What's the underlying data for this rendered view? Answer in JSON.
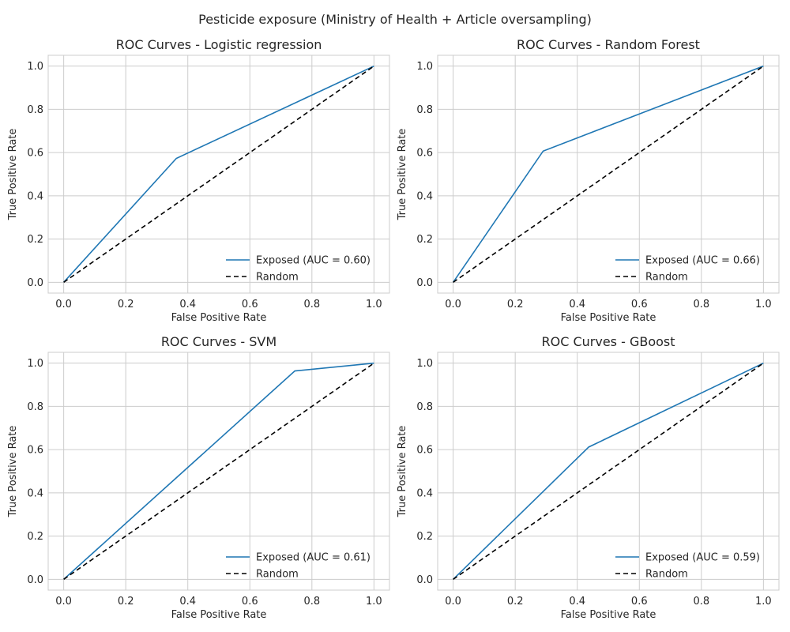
{
  "figure": {
    "title": "Pesticide exposure (Ministry of Health + Article oversampling)"
  },
  "colors": {
    "model_curve": "#1f77b4",
    "random_line": "#000000",
    "grid": "#cccccc"
  },
  "chart_data": [
    {
      "type": "line",
      "title": "ROC Curves - Logistic regression",
      "xlabel": "False Positive Rate",
      "ylabel": "True Positive Rate",
      "xlim": [
        -0.05,
        1.05
      ],
      "ylim": [
        -0.05,
        1.05
      ],
      "xticks": [
        "0.0",
        "0.2",
        "0.4",
        "0.6",
        "0.8",
        "1.0"
      ],
      "yticks": [
        "0.0",
        "0.2",
        "0.4",
        "0.6",
        "0.8",
        "1.0"
      ],
      "grid": true,
      "legend_position": "lower-right",
      "series": [
        {
          "name": "Exposed (AUC = 0.60)",
          "style": "solid",
          "x": [
            0.0,
            0.363,
            1.0
          ],
          "y": [
            0.0,
            0.573,
            1.0
          ]
        },
        {
          "name": "Random",
          "style": "dashed",
          "x": [
            0.0,
            1.0
          ],
          "y": [
            0.0,
            1.0
          ]
        }
      ]
    },
    {
      "type": "line",
      "title": "ROC Curves - Random Forest",
      "xlabel": "False Positive Rate",
      "ylabel": "True Positive Rate",
      "xlim": [
        -0.05,
        1.05
      ],
      "ylim": [
        -0.05,
        1.05
      ],
      "xticks": [
        "0.0",
        "0.2",
        "0.4",
        "0.6",
        "0.8",
        "1.0"
      ],
      "yticks": [
        "0.0",
        "0.2",
        "0.4",
        "0.6",
        "0.8",
        "1.0"
      ],
      "grid": true,
      "legend_position": "lower-right",
      "series": [
        {
          "name": "Exposed (AUC = 0.66)",
          "style": "solid",
          "x": [
            0.0,
            0.29,
            1.0
          ],
          "y": [
            0.0,
            0.607,
            1.0
          ]
        },
        {
          "name": "Random",
          "style": "dashed",
          "x": [
            0.0,
            1.0
          ],
          "y": [
            0.0,
            1.0
          ]
        }
      ]
    },
    {
      "type": "line",
      "title": "ROC Curves - SVM",
      "xlabel": "False Positive Rate",
      "ylabel": "True Positive Rate",
      "xlim": [
        -0.05,
        1.05
      ],
      "ylim": [
        -0.05,
        1.05
      ],
      "xticks": [
        "0.0",
        "0.2",
        "0.4",
        "0.6",
        "0.8",
        "1.0"
      ],
      "yticks": [
        "0.0",
        "0.2",
        "0.4",
        "0.6",
        "0.8",
        "1.0"
      ],
      "grid": true,
      "legend_position": "lower-right",
      "series": [
        {
          "name": "Exposed (AUC = 0.61)",
          "style": "solid",
          "x": [
            0.0,
            0.745,
            1.0
          ],
          "y": [
            0.0,
            0.964,
            1.0
          ]
        },
        {
          "name": "Random",
          "style": "dashed",
          "x": [
            0.0,
            1.0
          ],
          "y": [
            0.0,
            1.0
          ]
        }
      ]
    },
    {
      "type": "line",
      "title": "ROC Curves - GBoost",
      "xlabel": "False Positive Rate",
      "ylabel": "True Positive Rate",
      "xlim": [
        -0.05,
        1.05
      ],
      "ylim": [
        -0.05,
        1.05
      ],
      "xticks": [
        "0.0",
        "0.2",
        "0.4",
        "0.6",
        "0.8",
        "1.0"
      ],
      "yticks": [
        "0.0",
        "0.2",
        "0.4",
        "0.6",
        "0.8",
        "1.0"
      ],
      "grid": true,
      "legend_position": "lower-right",
      "series": [
        {
          "name": "Exposed (AUC = 0.59)",
          "style": "solid",
          "x": [
            0.0,
            0.437,
            1.0
          ],
          "y": [
            0.0,
            0.612,
            1.0
          ]
        },
        {
          "name": "Random",
          "style": "dashed",
          "x": [
            0.0,
            1.0
          ],
          "y": [
            0.0,
            1.0
          ]
        }
      ]
    }
  ]
}
